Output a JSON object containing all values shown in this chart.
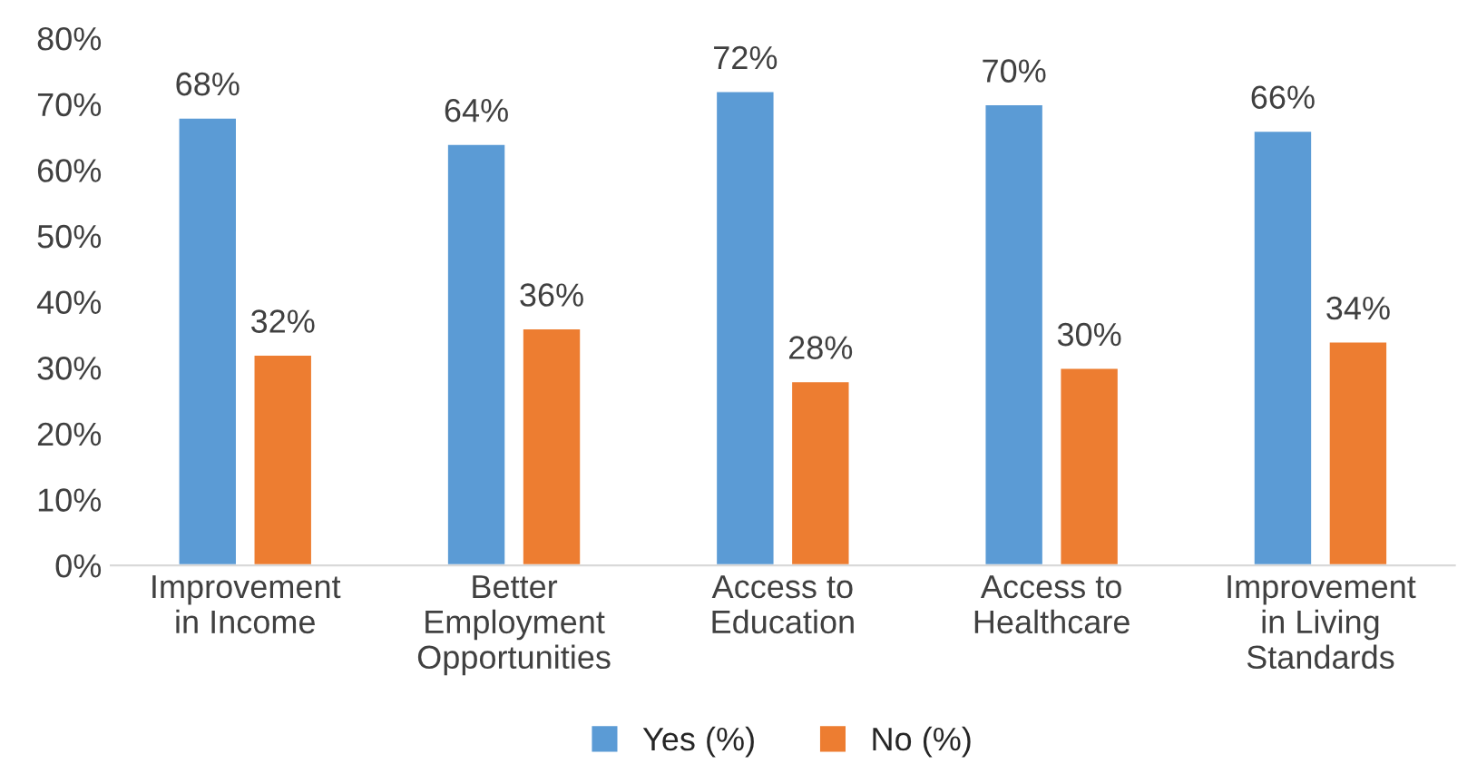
{
  "chart_data": {
    "type": "bar",
    "categories": [
      "Improvement in Income",
      "Better Employment Opportunities",
      "Access to Education",
      "Access to Healthcare",
      "Improvement in Living Standards"
    ],
    "series": [
      {
        "name": "Yes (%)",
        "color": "#5b9bd5",
        "values": [
          68,
          64,
          72,
          70,
          66
        ],
        "value_labels": [
          "68%",
          "64%",
          "72%",
          "70%",
          "66%"
        ]
      },
      {
        "name": "No (%)",
        "color": "#ed7d31",
        "values": [
          32,
          36,
          28,
          30,
          34
        ],
        "value_labels": [
          "32%",
          "36%",
          "28%",
          "30%",
          "34%"
        ]
      }
    ],
    "ylim": [
      0,
      80
    ],
    "yticks": [
      {
        "value": 0,
        "label": "0%"
      },
      {
        "value": 10,
        "label": "10%"
      },
      {
        "value": 20,
        "label": "20%"
      },
      {
        "value": 30,
        "label": "30%"
      },
      {
        "value": 40,
        "label": "40%"
      },
      {
        "value": 50,
        "label": "50%"
      },
      {
        "value": 60,
        "label": "60%"
      },
      {
        "value": 70,
        "label": "70%"
      },
      {
        "value": 80,
        "label": "80%"
      }
    ],
    "grid": false,
    "legend": "bottom"
  }
}
